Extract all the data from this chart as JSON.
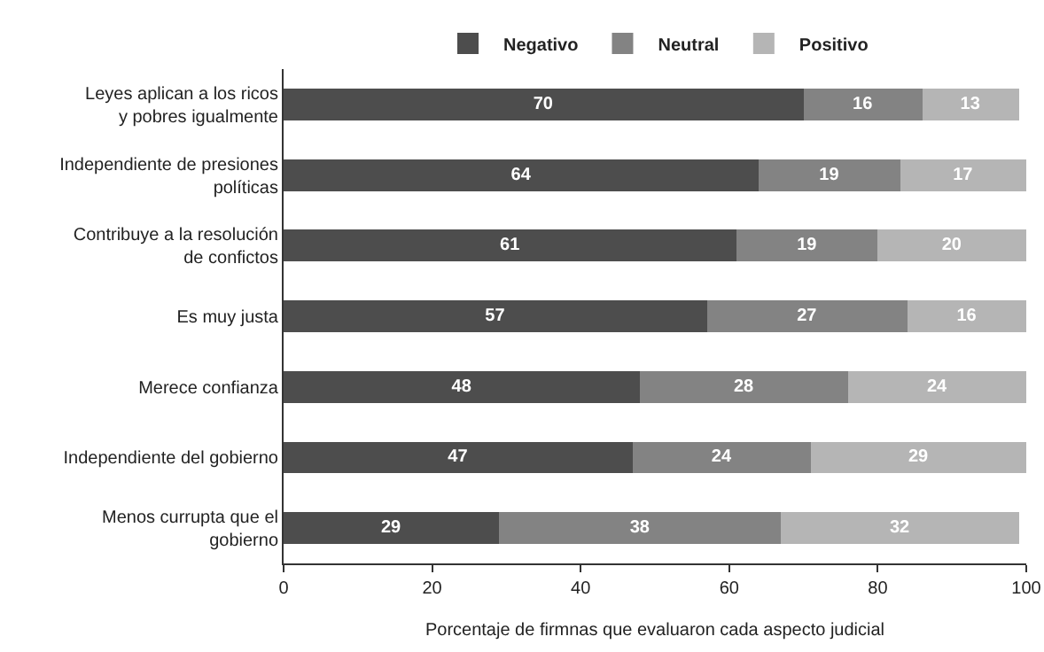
{
  "chart_data": {
    "type": "bar",
    "orientation": "horizontal",
    "stacked": true,
    "data_labels": true,
    "legend": "top",
    "grid": false,
    "xlabel": "Porcentaje de firmnas que evaluaron cada aspecto judicial",
    "categories": [
      "Leyes aplican a los ricos y pobres igualmente",
      "Independiente de presiones políticas",
      "Contribuye a la resolución de confictos",
      "Es muy justa",
      "Merece confianza",
      "Independiente del gobierno",
      "Menos currupta que el gobierno"
    ],
    "xlim": [
      0,
      100
    ],
    "xticks": [
      0,
      20,
      40,
      60,
      80,
      100
    ],
    "series": [
      {
        "name": "Negativo",
        "color": "#4d4d4d",
        "values": [
          70,
          64,
          61,
          57,
          48,
          47,
          29
        ]
      },
      {
        "name": "Neutral",
        "color": "#838383",
        "values": [
          16,
          19,
          19,
          27,
          28,
          24,
          38
        ]
      },
      {
        "name": "Positivo",
        "color": "#b5b5b5",
        "values": [
          13,
          17,
          20,
          16,
          24,
          29,
          32
        ]
      }
    ]
  }
}
